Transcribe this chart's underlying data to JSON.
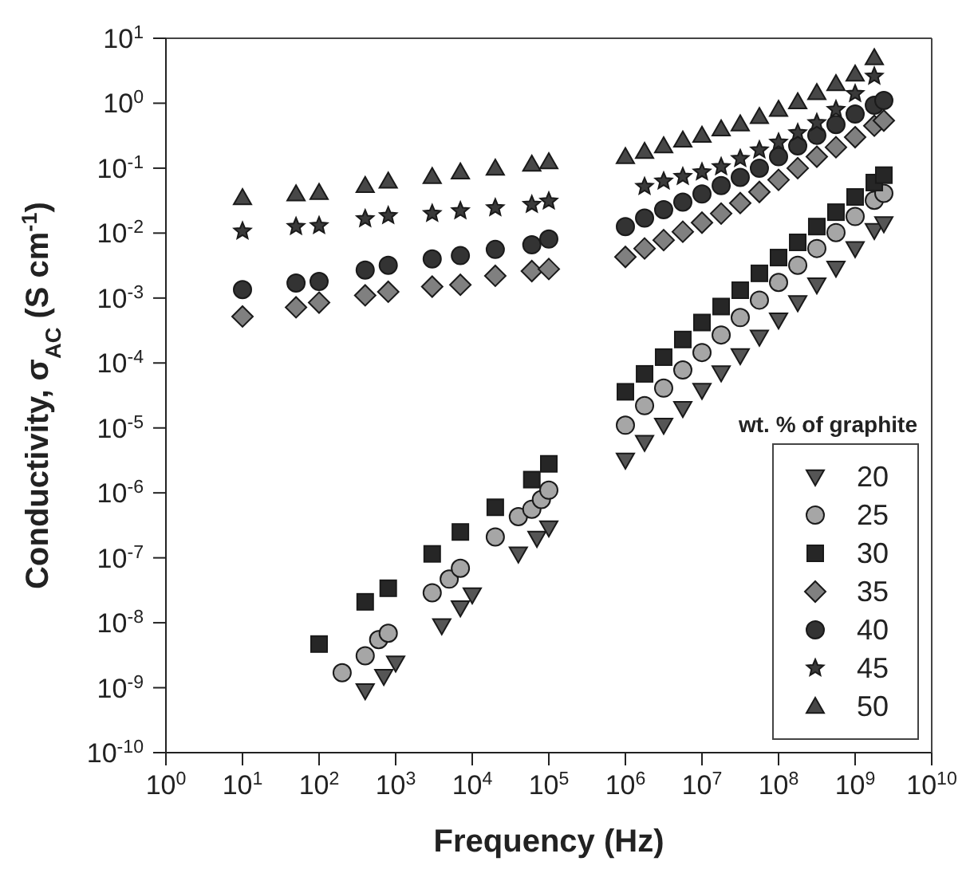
{
  "chart_data": {
    "type": "scatter",
    "xlabel": "Frequency (Hz)",
    "ylabel": "Conductivity, σ$_{AC}$ (S cm$^{-1}$)",
    "legend_title": "wt. % of graphite",
    "log": "xy",
    "grid": false,
    "legend": "bottom right",
    "xlim": [
      1,
      10000000000
    ],
    "ylim": [
      1e-10,
      10
    ],
    "xticks": [
      {
        "value": 1,
        "label": "10$^{0}$"
      },
      {
        "value": 10,
        "label": "10$^{1}$"
      },
      {
        "value": 100,
        "label": "10$^{2}$"
      },
      {
        "value": 1000,
        "label": "10$^{3}$"
      },
      {
        "value": 10000,
        "label": "10$^{4}$"
      },
      {
        "value": 100000,
        "label": "10$^{5}$"
      },
      {
        "value": 1000000,
        "label": "10$^{6}$"
      },
      {
        "value": 10000000,
        "label": "10$^{7}$"
      },
      {
        "value": 100000000,
        "label": "10$^{8}$"
      },
      {
        "value": 1000000000,
        "label": "10$^{9}$"
      },
      {
        "value": 10000000000,
        "label": "10$^{10}$"
      }
    ],
    "yticks": [
      {
        "value": 1e-10,
        "label": "10$^{-10}$"
      },
      {
        "value": 1e-09,
        "label": "10$^{-9}$"
      },
      {
        "value": 1e-08,
        "label": "10$^{-8}$"
      },
      {
        "value": 1e-07,
        "label": "10$^{-7}$"
      },
      {
        "value": 1e-06,
        "label": "10$^{-6}$"
      },
      {
        "value": 1e-05,
        "label": "10$^{-5}$"
      },
      {
        "value": 0.0001,
        "label": "10$^{-4}$"
      },
      {
        "value": 0.001,
        "label": "10$^{-3}$"
      },
      {
        "value": 0.01,
        "label": "10$^{-2}$"
      },
      {
        "value": 0.1,
        "label": "10$^{-1}$"
      },
      {
        "value": 1,
        "label": "10$^{0}$"
      },
      {
        "value": 10,
        "label": "10$^{1}$"
      }
    ],
    "series": [
      {
        "name": "20",
        "color": "#555555",
        "marker": "triangle-down",
        "x": [
          400,
          700,
          1000,
          4000,
          7000,
          10000,
          40000,
          70000,
          100000,
          1000000,
          1780000,
          3160000,
          5620000,
          10000000,
          17800000,
          31600000,
          56200000,
          100000000,
          178000000,
          316000000,
          562000000,
          1000000000,
          1780000000,
          2370000000
        ],
        "values": [
          9e-10,
          1.5e-09,
          2.4e-09,
          9e-09,
          1.7e-08,
          2.7e-08,
          1.15e-07,
          2e-07,
          2.9e-07,
          3.2e-06,
          6e-06,
          1.1e-05,
          2e-05,
          3.8e-05,
          7.1e-05,
          0.00013,
          0.00025,
          0.00046,
          0.00085,
          0.0016,
          0.0029,
          0.0058,
          0.011,
          0.014
        ]
      },
      {
        "name": "25",
        "color": "#a6a6a6",
        "marker": "circle",
        "x": [
          200,
          400,
          600,
          800,
          3000,
          5000,
          7000,
          20000,
          40000,
          60000,
          80000,
          100000,
          1000000,
          1780000,
          3160000,
          5620000,
          10000000,
          17800000,
          31600000,
          56200000,
          100000000,
          178000000,
          316000000,
          562000000,
          1000000000,
          1780000000,
          2370000000
        ],
        "values": [
          1.7e-09,
          3.1e-09,
          5.5e-09,
          6.9e-09,
          2.9e-08,
          4.7e-08,
          6.9e-08,
          2.1e-07,
          4.3e-07,
          5.6e-07,
          7.9e-07,
          1.1e-06,
          1.1e-05,
          2.2e-05,
          4.1e-05,
          7.8e-05,
          0.000145,
          0.00027,
          0.0005,
          0.00093,
          0.00174,
          0.0032,
          0.0058,
          0.0102,
          0.018,
          0.032,
          0.041
        ]
      },
      {
        "name": "30",
        "color": "#262626",
        "marker": "square",
        "x": [
          100,
          400,
          800,
          3000,
          7000,
          20000,
          60000,
          100000,
          1000000,
          1780000,
          3160000,
          5620000,
          10000000,
          17800000,
          31600000,
          56200000,
          100000000,
          178000000,
          316000000,
          562000000,
          1000000000,
          1780000000,
          2370000000
        ],
        "values": [
          4.7e-09,
          2.1e-08,
          3.4e-08,
          1.15e-07,
          2.5e-07,
          6e-07,
          1.6e-06,
          2.8e-06,
          3.6e-05,
          6.8e-05,
          0.000123,
          0.00023,
          0.00042,
          0.00074,
          0.00132,
          0.0024,
          0.0042,
          0.0072,
          0.0126,
          0.021,
          0.036,
          0.06,
          0.078
        ]
      },
      {
        "name": "35",
        "color": "#808080",
        "marker": "diamond",
        "x": [
          10,
          50,
          100,
          400,
          800,
          3000,
          7000,
          20000,
          60000,
          100000,
          1000000,
          1780000,
          3160000,
          5620000,
          10000000,
          17800000,
          31600000,
          56200000,
          100000000,
          178000000,
          316000000,
          562000000,
          1000000000,
          1780000000,
          2370000000
        ],
        "values": [
          0.00052,
          0.00072,
          0.00085,
          0.0011,
          0.00125,
          0.0015,
          0.0016,
          0.0022,
          0.0026,
          0.0028,
          0.0043,
          0.0058,
          0.0078,
          0.0105,
          0.0145,
          0.02,
          0.029,
          0.043,
          0.066,
          0.1,
          0.15,
          0.21,
          0.3,
          0.45,
          0.54
        ]
      },
      {
        "name": "40",
        "color": "#333333",
        "marker": "circle",
        "x": [
          10,
          50,
          100,
          400,
          800,
          3000,
          7000,
          20000,
          60000,
          100000,
          1000000,
          1780000,
          3160000,
          5620000,
          10000000,
          17800000,
          31600000,
          56200000,
          100000000,
          178000000,
          316000000,
          562000000,
          1000000000,
          1780000000,
          2370000000
        ],
        "values": [
          0.00135,
          0.0017,
          0.0018,
          0.0027,
          0.0032,
          0.004,
          0.0045,
          0.0056,
          0.0066,
          0.0081,
          0.0126,
          0.017,
          0.023,
          0.03,
          0.04,
          0.054,
          0.072,
          0.1,
          0.15,
          0.22,
          0.32,
          0.47,
          0.68,
          0.93,
          1.1
        ]
      },
      {
        "name": "45",
        "color": "#3a3a3a",
        "marker": "star",
        "x": [
          10,
          50,
          100,
          400,
          800,
          3000,
          7000,
          20000,
          60000,
          100000,
          1780000,
          3160000,
          5620000,
          10000000,
          17800000,
          31600000,
          56200000,
          100000000,
          178000000,
          316000000,
          562000000,
          1000000000,
          1780000000
        ],
        "values": [
          0.0107,
          0.0126,
          0.013,
          0.0166,
          0.0185,
          0.02,
          0.022,
          0.0245,
          0.0275,
          0.031,
          0.052,
          0.063,
          0.074,
          0.087,
          0.105,
          0.14,
          0.19,
          0.25,
          0.35,
          0.5,
          0.8,
          1.4,
          2.6
        ]
      },
      {
        "name": "50",
        "color": "#474747",
        "marker": "triangle",
        "x": [
          10,
          50,
          100,
          400,
          800,
          3000,
          7000,
          20000,
          60000,
          100000,
          1000000,
          1780000,
          3160000,
          5620000,
          10000000,
          17800000,
          31600000,
          56200000,
          100000000,
          178000000,
          316000000,
          562000000,
          1000000000,
          1780000000
        ],
        "values": [
          0.035,
          0.04,
          0.042,
          0.054,
          0.063,
          0.074,
          0.087,
          0.1,
          0.115,
          0.125,
          0.15,
          0.18,
          0.22,
          0.27,
          0.32,
          0.4,
          0.48,
          0.62,
          0.8,
          1.05,
          1.45,
          2.0,
          2.8,
          5.0
        ]
      }
    ]
  }
}
